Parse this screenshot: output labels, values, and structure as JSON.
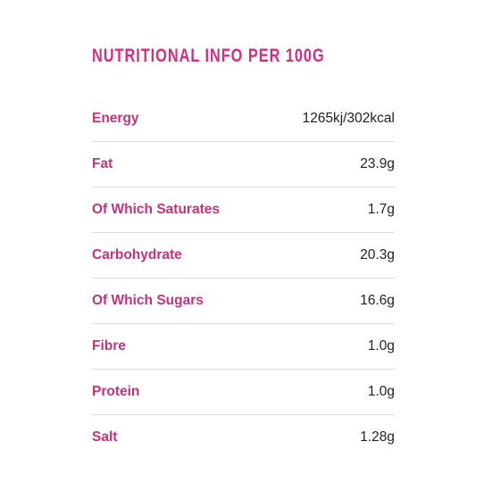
{
  "nutrition": {
    "title": "NUTRITIONAL INFO PER 100G",
    "rows": [
      {
        "label": "Energy",
        "value": "1265kj/302kcal"
      },
      {
        "label": "Fat",
        "value": "23.9g"
      },
      {
        "label": "Of Which Saturates",
        "value": "1.7g"
      },
      {
        "label": "Carbohydrate",
        "value": "20.3g"
      },
      {
        "label": "Of Which Sugars",
        "value": "16.6g"
      },
      {
        "label": "Fibre",
        "value": "1.0g"
      },
      {
        "label": "Protein",
        "value": "1.0g"
      },
      {
        "label": "Salt",
        "value": "1.28g"
      }
    ]
  },
  "colors": {
    "accent": "#d32f7f",
    "label": "#c2347a",
    "value_text": "#222222",
    "divider": "#dcdcdc",
    "background": "#ffffff"
  }
}
